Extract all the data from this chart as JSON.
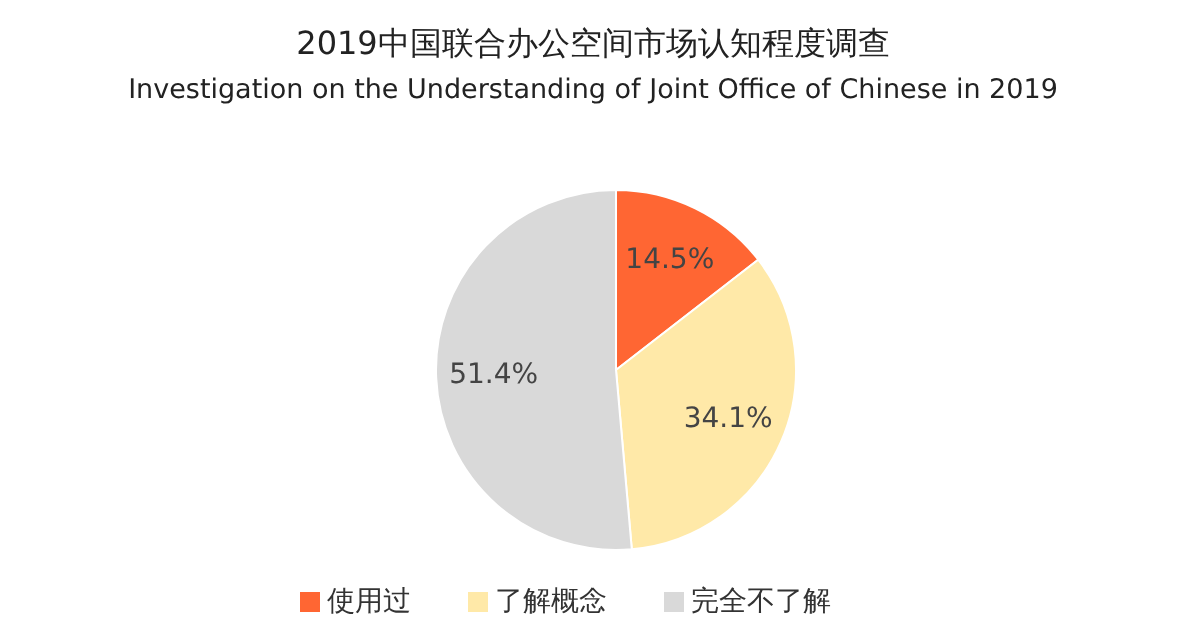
{
  "chart_data": {
    "type": "pie",
    "title": "2019中国联合办公空间市场认知程度调查",
    "subtitle": "Investigation on the Understanding of Joint Office of Chinese in 2019",
    "categories": [
      "使用过",
      "了解概念",
      "完全不了解"
    ],
    "values": [
      14.5,
      34.1,
      51.4
    ],
    "value_labels": [
      "14.5%",
      "34.1%",
      "51.4%"
    ],
    "colors": [
      "#ff6633",
      "#ffe9a8",
      "#d9d9d9"
    ],
    "legend": "bottom"
  }
}
